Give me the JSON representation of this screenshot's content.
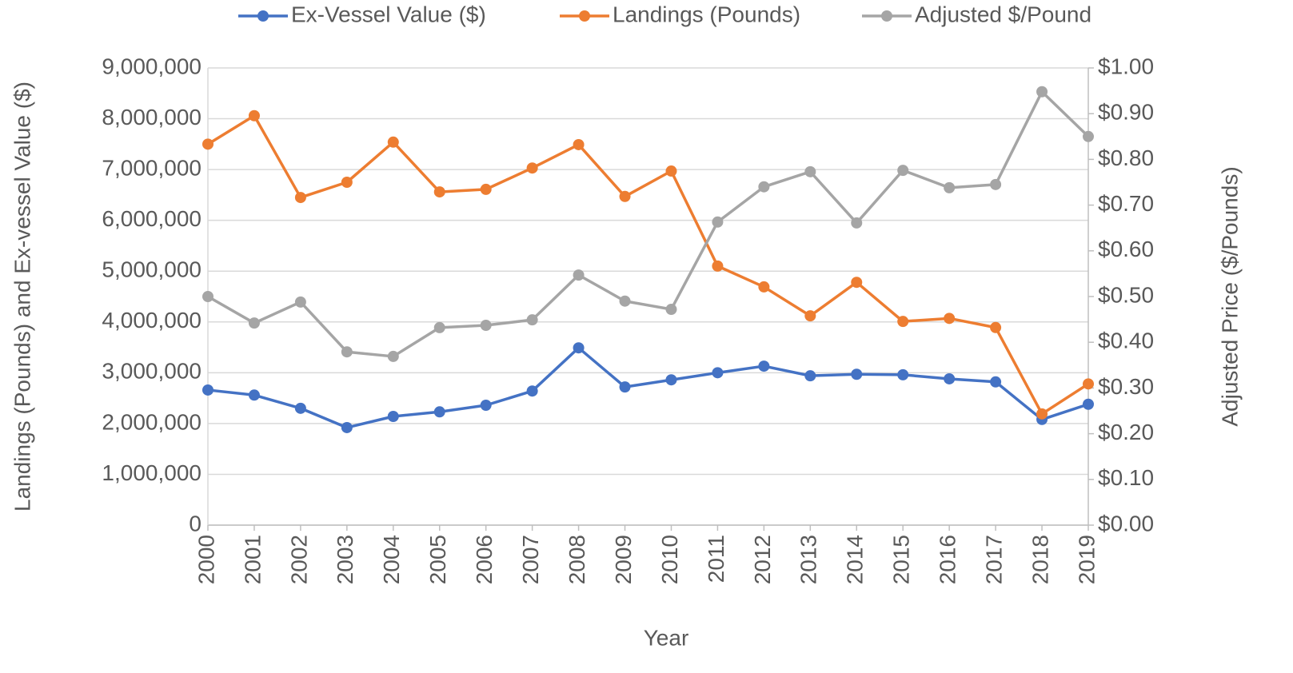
{
  "chart_data": {
    "type": "line",
    "x_label": "Year",
    "y_label": "Landings (Pounds) and Ex-vessel Value ($)",
    "y2_label": "Adjusted Price ($/Pounds)",
    "categories": [
      "2000",
      "2001",
      "2002",
      "2003",
      "2004",
      "2005",
      "2006",
      "2007",
      "2008",
      "2009",
      "2010",
      "2011",
      "2012",
      "2013",
      "2014",
      "2015",
      "2016",
      "2017",
      "2018",
      "2019"
    ],
    "series": [
      {
        "name": "Ex-Vessel Value ($)",
        "color": "#4472c4",
        "values": [
          2660000,
          2560000,
          2300000,
          1920000,
          2140000,
          2230000,
          2360000,
          2640000,
          3490000,
          2720000,
          2860000,
          3000000,
          3130000,
          2940000,
          2970000,
          2960000,
          2880000,
          2820000,
          2080000,
          2380000
        ]
      },
      {
        "name": "Landings (Pounds)",
        "color": "#ed7d31",
        "values": [
          7500000,
          8060000,
          6450000,
          6750000,
          7540000,
          6560000,
          6610000,
          7030000,
          7490000,
          6470000,
          6970000,
          5100000,
          4690000,
          4120000,
          4780000,
          4010000,
          4070000,
          3890000,
          2190000,
          2780000
        ]
      },
      {
        "name": "Adjusted $/Pound",
        "color": "#a5a5a5",
        "axis": "y2",
        "values": [
          0.5,
          0.442,
          0.488,
          0.379,
          0.369,
          0.432,
          0.437,
          0.449,
          0.547,
          0.49,
          0.472,
          0.663,
          0.74,
          0.773,
          0.661,
          0.776,
          0.738,
          0.745,
          0.948,
          0.85
        ]
      }
    ],
    "ylim": [
      0,
      9000000
    ],
    "yticks": [
      0,
      {
        "value": 1000000,
        "label": "1,000,000"
      },
      {
        "value": 2000000,
        "label": "2,000,000"
      },
      {
        "value": 3000000,
        "label": "3,000,000"
      },
      {
        "value": 4000000,
        "label": "4,000,000"
      },
      {
        "value": 5000000,
        "label": "5,000,000"
      },
      {
        "value": 6000000,
        "label": "6,000,000"
      },
      {
        "value": 7000000,
        "label": "7,000,000"
      },
      {
        "value": 8000000,
        "label": "8,000,000"
      },
      {
        "value": 9000000,
        "label": "9,000,000"
      }
    ],
    "y2lim": [
      0,
      1
    ],
    "y2ticks": [
      {
        "value": 0,
        "label": "$0.00"
      },
      {
        "value": 0.1,
        "label": "$0.10"
      },
      {
        "value": 0.2,
        "label": "$0.20"
      },
      {
        "value": 0.3,
        "label": "$0.30"
      },
      {
        "value": 0.4,
        "label": "$0.40"
      },
      {
        "value": 0.5,
        "label": "$0.50"
      },
      {
        "value": 0.6,
        "label": "$0.60"
      },
      {
        "value": 0.7,
        "label": "$0.70"
      },
      {
        "value": 0.8,
        "label": "$0.80"
      },
      {
        "value": 0.9,
        "label": "$0.90"
      },
      {
        "value": 1,
        "label": "$1.00"
      }
    ],
    "grid": true,
    "legend": "top"
  }
}
